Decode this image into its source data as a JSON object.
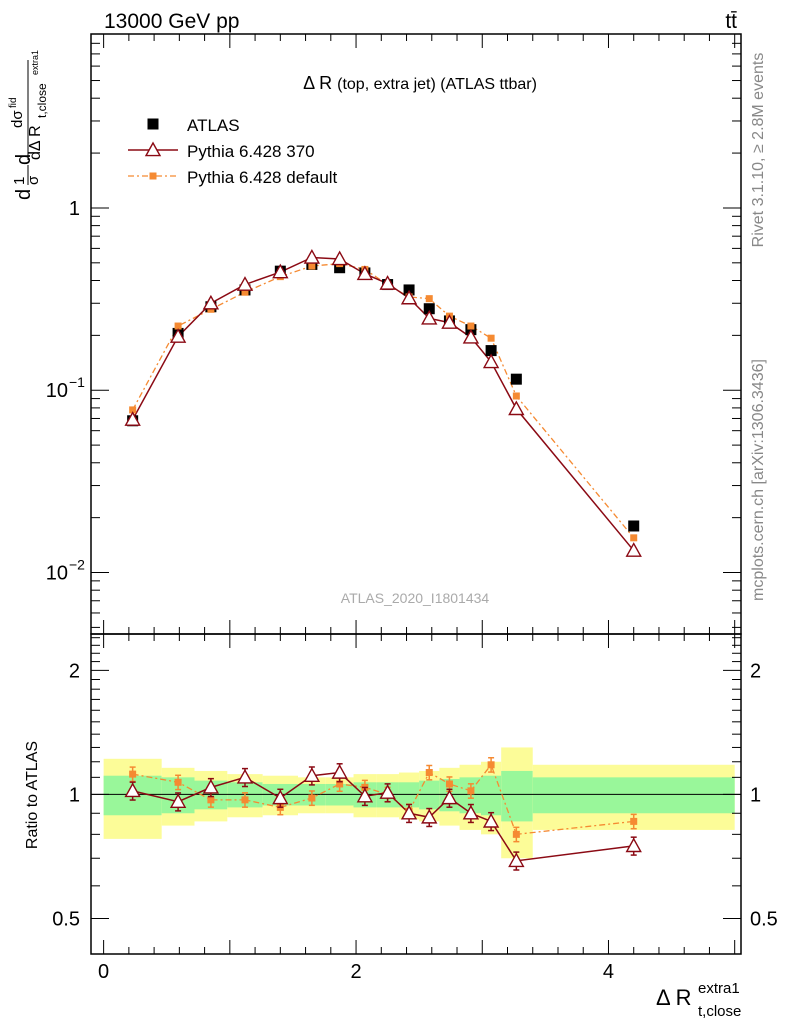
{
  "header": {
    "energy": "13000 GeV pp",
    "process": "tt̄"
  },
  "side": {
    "rivet": "Rivet 3.1.10, ≥ 2.8M events",
    "mcplots": "mcplots.cern.ch [arXiv:1306.3436]"
  },
  "colors": {
    "atlas": "#000000",
    "py370": "#8b0a14",
    "pydef": "#f58a32",
    "band_inner": "#99f79a",
    "band_outer": "#fcfc98"
  },
  "chart_data": {
    "type": "line",
    "title": "Δ R (top, extra jet) (ATLAS ttbar)",
    "analysis_label": "ATLAS_2020_I1801434",
    "xlabel": "Δ R",
    "xlabel_sup": "extra1",
    "xlabel_sub": "t,close",
    "ylabel_upper": "d¹/σ dσ/dΔ R(t,close, extra1)",
    "ylabel_lower": "Ratio to ATLAS",
    "xlim": [
      -0.1,
      5.05
    ],
    "ylim_upper": [
      0.0046,
      9.0
    ],
    "ylim_ratio": [
      0.41,
      2.45
    ],
    "x_ticks": [
      0,
      2,
      4
    ],
    "y_ticks_upper": [
      "10^-2",
      "10^-1",
      "1"
    ],
    "y_ticks_ratio": [
      "0.5",
      "1",
      "2"
    ],
    "x": [
      0.23,
      0.59,
      0.85,
      1.12,
      1.4,
      1.65,
      1.87,
      2.07,
      2.25,
      2.42,
      2.58,
      2.74,
      2.91,
      3.07,
      3.27,
      4.2
    ],
    "bin_edges": [
      0.0,
      0.46,
      0.72,
      0.98,
      1.26,
      1.54,
      1.76,
      1.98,
      2.16,
      2.34,
      2.5,
      2.66,
      2.82,
      2.99,
      3.15,
      3.4,
      5.0
    ],
    "series": [
      {
        "name": "ATLAS",
        "values": [
          0.068,
          0.205,
          0.287,
          0.355,
          0.45,
          0.49,
          0.47,
          0.44,
          0.38,
          0.355,
          0.28,
          0.24,
          0.215,
          0.165,
          0.115,
          0.018
        ]
      },
      {
        "name": "Pythia 6.428 370",
        "values": [
          0.069,
          0.197,
          0.3,
          0.38,
          0.445,
          0.535,
          0.525,
          0.435,
          0.385,
          0.32,
          0.248,
          0.235,
          0.195,
          0.143,
          0.079,
          0.0132
        ]
      },
      {
        "name": "Pythia 6.428 default",
        "values": [
          0.078,
          0.225,
          0.278,
          0.345,
          0.42,
          0.48,
          0.495,
          0.46,
          0.38,
          0.325,
          0.318,
          0.255,
          0.225,
          0.193,
          0.093,
          0.0155
        ]
      }
    ],
    "ratio_series": [
      {
        "name": "Pythia 6.428 370",
        "values": [
          1.02,
          0.96,
          1.04,
          1.1,
          0.98,
          1.11,
          1.13,
          0.99,
          1.01,
          0.9,
          0.88,
          0.98,
          0.9,
          0.86,
          0.69,
          0.75
        ]
      },
      {
        "name": "Pythia 6.428 default",
        "values": [
          1.12,
          1.07,
          0.97,
          0.97,
          0.93,
          0.98,
          1.06,
          1.04,
          1.0,
          0.91,
          1.13,
          1.06,
          1.02,
          1.18,
          0.8,
          0.86
        ]
      }
    ],
    "band_inner": [
      0.11,
      0.1,
      0.08,
      0.07,
      0.06,
      0.06,
      0.06,
      0.07,
      0.07,
      0.07,
      0.08,
      0.09,
      0.1,
      0.11,
      0.14,
      0.1
    ],
    "band_outer": [
      0.22,
      0.16,
      0.14,
      0.12,
      0.11,
      0.1,
      0.1,
      0.12,
      0.12,
      0.13,
      0.14,
      0.16,
      0.18,
      0.2,
      0.3,
      0.18
    ]
  }
}
